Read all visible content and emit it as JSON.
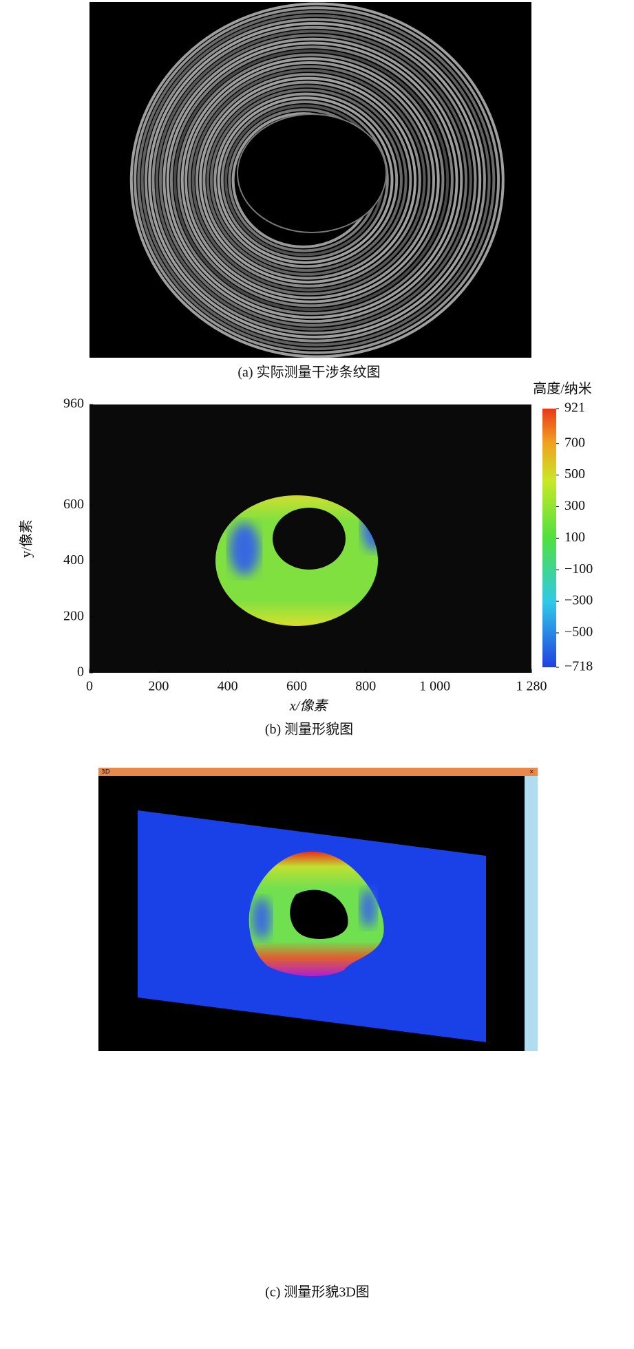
{
  "figure_a": {
    "caption": "(a) 实际测量干涉条纹图"
  },
  "chart_data": {
    "type": "heatmap",
    "caption": "(b) 测量形貌图",
    "xlabel": "x/像素",
    "ylabel": "y/像素",
    "xlim": [
      0,
      1280
    ],
    "xticks": [
      0,
      200,
      400,
      600,
      800,
      {
        "value": 1000,
        "label": "1 000"
      },
      {
        "value": 1280,
        "label": "1 280"
      }
    ],
    "ylim": [
      0,
      960
    ],
    "yticks": [
      0,
      200,
      400,
      600,
      960
    ],
    "colorbar": {
      "title": "高度/纳米",
      "lim": [
        -718,
        921
      ],
      "ticks": [
        {
          "value": -718,
          "label": "−718"
        },
        {
          "value": -500,
          "label": "−500"
        },
        {
          "value": -300,
          "label": "−300"
        },
        {
          "value": -100,
          "label": "−100"
        },
        100,
        300,
        500,
        700,
        921
      ]
    }
  },
  "figure_c": {
    "window_title": "3D",
    "close": "×",
    "caption": "(c) 测量形貌3D图"
  }
}
